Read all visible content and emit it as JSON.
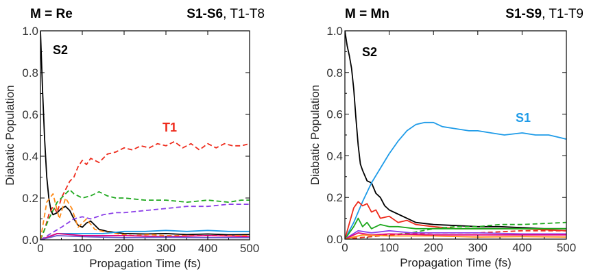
{
  "panels": [
    {
      "header_left": "M = Re",
      "header_right_bold": "S1-S6",
      "header_right_rest": ", T1-T8"
    },
    {
      "header_left": "M = Mn",
      "header_right_bold": "S1-S9",
      "header_right_rest": ", T1-T9"
    }
  ],
  "chart_data": [
    {
      "type": "line",
      "xlabel": "Propagation Time (fs)",
      "ylabel": "Diabatic Population",
      "xlim": [
        0,
        500
      ],
      "ylim": [
        0,
        1.0
      ],
      "x_ticks": [
        "0",
        "100",
        "200",
        "300",
        "400",
        "500"
      ],
      "y_ticks": [
        "0.0",
        "0.2",
        "0.4",
        "0.6",
        "0.8",
        "1.0"
      ],
      "annotations": [
        {
          "text": "S2",
          "color": "#000000"
        },
        {
          "text": "T1",
          "color": "#ee2a1b"
        }
      ],
      "series": [
        {
          "color": "#000000",
          "dash": false,
          "x": [
            0,
            5,
            10,
            15,
            20,
            25,
            30,
            40,
            50,
            60,
            70,
            80,
            90,
            100,
            110,
            120,
            130,
            140,
            160,
            180,
            200,
            250,
            300,
            350,
            400,
            450,
            500
          ],
          "y": [
            1.0,
            0.72,
            0.48,
            0.3,
            0.2,
            0.14,
            0.12,
            0.13,
            0.15,
            0.16,
            0.14,
            0.1,
            0.07,
            0.06,
            0.08,
            0.09,
            0.07,
            0.05,
            0.04,
            0.035,
            0.03,
            0.028,
            0.03,
            0.025,
            0.028,
            0.024,
            0.025
          ]
        },
        {
          "color": "#ee2a1b",
          "dash": true,
          "x": [
            0,
            10,
            20,
            30,
            40,
            50,
            60,
            70,
            80,
            90,
            100,
            110,
            120,
            140,
            160,
            180,
            200,
            220,
            240,
            260,
            280,
            300,
            320,
            340,
            360,
            380,
            400,
            420,
            440,
            460,
            480,
            500
          ],
          "y": [
            0.0,
            0.05,
            0.12,
            0.16,
            0.13,
            0.2,
            0.24,
            0.28,
            0.3,
            0.35,
            0.38,
            0.36,
            0.39,
            0.37,
            0.41,
            0.42,
            0.44,
            0.43,
            0.45,
            0.44,
            0.46,
            0.45,
            0.47,
            0.44,
            0.46,
            0.43,
            0.46,
            0.44,
            0.46,
            0.45,
            0.45,
            0.46
          ]
        },
        {
          "color": "#1ea81e",
          "dash": true,
          "x": [
            0,
            20,
            40,
            60,
            70,
            80,
            100,
            120,
            140,
            160,
            180,
            200,
            250,
            300,
            350,
            400,
            450,
            480,
            500
          ],
          "y": [
            0.0,
            0.1,
            0.18,
            0.22,
            0.24,
            0.22,
            0.2,
            0.21,
            0.23,
            0.21,
            0.2,
            0.2,
            0.19,
            0.19,
            0.18,
            0.19,
            0.18,
            0.19,
            0.19
          ]
        },
        {
          "color": "#8b3fe8",
          "dash": true,
          "x": [
            0,
            50,
            80,
            100,
            120,
            150,
            180,
            200,
            250,
            300,
            350,
            400,
            450,
            500
          ],
          "y": [
            0.0,
            0.06,
            0.1,
            0.11,
            0.1,
            0.12,
            0.13,
            0.13,
            0.14,
            0.15,
            0.16,
            0.16,
            0.17,
            0.17
          ]
        },
        {
          "color": "#ff8c1a",
          "dash": true,
          "x": [
            0,
            15,
            30,
            45,
            60,
            75,
            90,
            110,
            130,
            150,
            180,
            220,
            260,
            300,
            350,
            400,
            450,
            500
          ],
          "y": [
            0.0,
            0.18,
            0.22,
            0.1,
            0.2,
            0.15,
            0.06,
            0.1,
            0.05,
            0.04,
            0.03,
            0.02,
            0.025,
            0.02,
            0.02,
            0.02,
            0.02,
            0.02
          ]
        },
        {
          "color": "#1e9be8",
          "dash": false,
          "x": [
            0,
            40,
            100,
            150,
            200,
            250,
            300,
            350,
            400,
            450,
            500
          ],
          "y": [
            0.0,
            0.03,
            0.03,
            0.03,
            0.04,
            0.04,
            0.045,
            0.04,
            0.045,
            0.04,
            0.04
          ]
        },
        {
          "color": "#e4007c",
          "dash": false,
          "x": [
            0,
            40,
            100,
            200,
            300,
            400,
            500
          ],
          "y": [
            0.0,
            0.03,
            0.02,
            0.02,
            0.015,
            0.02,
            0.015
          ]
        },
        {
          "color": "#6a5acd",
          "dash": false,
          "x": [
            0,
            40,
            100,
            200,
            300,
            400,
            500
          ],
          "y": [
            0.0,
            0.02,
            0.015,
            0.01,
            0.012,
            0.01,
            0.01
          ]
        }
      ]
    },
    {
      "type": "line",
      "xlabel": "Propagation Time (fs)",
      "ylabel": "Diabatic Population",
      "xlim": [
        0,
        500
      ],
      "ylim": [
        0,
        1.0
      ],
      "x_ticks": [
        "0",
        "100",
        "200",
        "300",
        "400",
        "500"
      ],
      "y_ticks": [
        "0.0",
        "0.2",
        "0.4",
        "0.6",
        "0.8",
        "1.0"
      ],
      "annotations": [
        {
          "text": "S2",
          "color": "#000000"
        },
        {
          "text": "S1",
          "color": "#1e9be8"
        }
      ],
      "series": [
        {
          "color": "#000000",
          "dash": false,
          "x": [
            0,
            5,
            10,
            15,
            20,
            25,
            30,
            35,
            40,
            50,
            60,
            70,
            80,
            90,
            100,
            120,
            140,
            160,
            180,
            200,
            250,
            300,
            350,
            400,
            450,
            500
          ],
          "y": [
            1.0,
            0.93,
            0.88,
            0.82,
            0.72,
            0.58,
            0.45,
            0.36,
            0.33,
            0.28,
            0.27,
            0.22,
            0.2,
            0.16,
            0.14,
            0.12,
            0.1,
            0.08,
            0.075,
            0.07,
            0.065,
            0.06,
            0.06,
            0.055,
            0.05,
            0.05
          ]
        },
        {
          "color": "#1e9be8",
          "dash": false,
          "x": [
            0,
            20,
            40,
            60,
            80,
            100,
            120,
            140,
            160,
            180,
            200,
            220,
            250,
            280,
            300,
            330,
            360,
            400,
            430,
            460,
            480,
            500
          ],
          "y": [
            0.0,
            0.08,
            0.18,
            0.27,
            0.34,
            0.41,
            0.47,
            0.52,
            0.55,
            0.56,
            0.56,
            0.54,
            0.53,
            0.52,
            0.52,
            0.51,
            0.5,
            0.51,
            0.5,
            0.5,
            0.49,
            0.48
          ]
        },
        {
          "color": "#ee2a1b",
          "dash": false,
          "x": [
            0,
            20,
            30,
            40,
            50,
            60,
            70,
            80,
            100,
            120,
            140,
            160,
            200,
            250,
            300,
            400,
            500
          ],
          "y": [
            0.0,
            0.15,
            0.18,
            0.16,
            0.17,
            0.13,
            0.14,
            0.1,
            0.11,
            0.08,
            0.09,
            0.07,
            0.06,
            0.05,
            0.05,
            0.05,
            0.04
          ]
        },
        {
          "color": "#1ea81e",
          "dash": false,
          "x": [
            0,
            20,
            30,
            40,
            50,
            60,
            80,
            100,
            120,
            160,
            200,
            300,
            400,
            500
          ],
          "y": [
            0.0,
            0.06,
            0.1,
            0.06,
            0.08,
            0.05,
            0.07,
            0.06,
            0.06,
            0.05,
            0.05,
            0.05,
            0.05,
            0.05
          ]
        },
        {
          "color": "#1ea81e",
          "dash": true,
          "x": [
            0,
            100,
            150,
            200,
            250,
            300,
            350,
            400,
            450,
            500
          ],
          "y": [
            0.0,
            0.02,
            0.03,
            0.05,
            0.06,
            0.06,
            0.07,
            0.07,
            0.075,
            0.08
          ]
        },
        {
          "color": "#ee2a1b",
          "dash": true,
          "x": [
            0,
            100,
            200,
            300,
            400,
            500
          ],
          "y": [
            0.0,
            0.02,
            0.03,
            0.03,
            0.04,
            0.04
          ]
        },
        {
          "color": "#8b3fe8",
          "dash": false,
          "x": [
            0,
            30,
            60,
            100,
            150,
            200,
            300,
            400,
            500
          ],
          "y": [
            0.0,
            0.04,
            0.03,
            0.04,
            0.03,
            0.03,
            0.03,
            0.025,
            0.025
          ]
        },
        {
          "color": "#e4007c",
          "dash": false,
          "x": [
            0,
            30,
            60,
            100,
            200,
            300,
            400,
            500
          ],
          "y": [
            0.0,
            0.03,
            0.02,
            0.025,
            0.02,
            0.02,
            0.02,
            0.02
          ]
        },
        {
          "color": "#ff8c1a",
          "dash": false,
          "x": [
            0,
            40,
            100,
            200,
            300,
            400,
            500
          ],
          "y": [
            0.0,
            0.02,
            0.015,
            0.015,
            0.01,
            0.012,
            0.01
          ]
        }
      ]
    }
  ]
}
